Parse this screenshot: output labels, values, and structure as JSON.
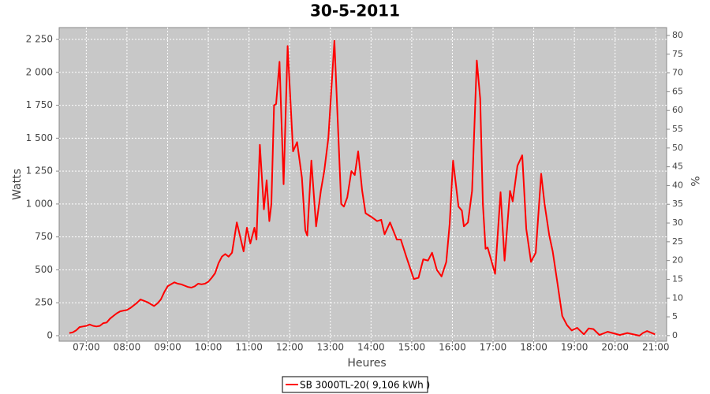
{
  "chart_data": {
    "type": "line",
    "title": "30-5-2011",
    "x_label": "Heures",
    "y_label": "Watts",
    "y2_label": "%",
    "x": [
      "06:35",
      "06:40",
      "06:45",
      "06:50",
      "06:55",
      "07:00",
      "07:05",
      "07:10",
      "07:15",
      "07:20",
      "07:25",
      "07:30",
      "07:35",
      "07:40",
      "07:45",
      "07:50",
      "07:55",
      "08:00",
      "08:05",
      "08:10",
      "08:15",
      "08:20",
      "08:25",
      "08:30",
      "08:35",
      "08:40",
      "08:45",
      "08:50",
      "08:55",
      "09:00",
      "09:05",
      "09:10",
      "09:15",
      "09:20",
      "09:25",
      "09:30",
      "09:35",
      "09:40",
      "09:45",
      "09:50",
      "09:55",
      "10:00",
      "10:05",
      "10:10",
      "10:15",
      "10:20",
      "10:25",
      "10:30",
      "10:35",
      "10:42",
      "10:52",
      "10:57",
      "11:02",
      "11:08",
      "11:11",
      "11:16",
      "11:22",
      "11:26",
      "11:30",
      "11:33",
      "11:37",
      "11:40",
      "11:45",
      "11:51",
      "11:57",
      "12:05",
      "12:11",
      "12:18",
      "12:23",
      "12:26",
      "12:32",
      "12:39",
      "12:46",
      "12:51",
      "12:57",
      "13:06",
      "13:16",
      "13:20",
      "13:25",
      "13:31",
      "13:36",
      "13:41",
      "13:47",
      "13:52",
      "14:01",
      "14:09",
      "14:15",
      "14:20",
      "14:28",
      "14:38",
      "14:44",
      "14:52",
      "15:03",
      "15:10",
      "15:17",
      "15:24",
      "15:30",
      "15:37",
      "15:44",
      "15:51",
      "15:56",
      "16:01",
      "16:09",
      "16:14",
      "16:17",
      "16:23",
      "16:29",
      "16:36",
      "16:41",
      "16:45",
      "16:49",
      "16:52",
      "16:58",
      "17:03",
      "17:11",
      "17:17",
      "17:25",
      "17:29",
      "17:36",
      "17:43",
      "17:49",
      "17:56",
      "18:03",
      "18:11",
      "18:16",
      "18:23",
      "18:28",
      "18:35",
      "18:42",
      "18:49",
      "18:56",
      "19:04",
      "19:14",
      "19:21",
      "19:28",
      "19:37",
      "19:49",
      "20:07",
      "20:18",
      "20:36",
      "20:41",
      "20:47",
      "20:59"
    ],
    "series": [
      {
        "name": "SB 3000TL-20( 9,106 kWh )",
        "color": "#ff0000",
        "values": [
          20,
          25,
          40,
          65,
          70,
          75,
          85,
          75,
          70,
          75,
          95,
          100,
          130,
          150,
          170,
          185,
          190,
          195,
          210,
          230,
          250,
          275,
          265,
          255,
          240,
          225,
          245,
          275,
          330,
          375,
          390,
          405,
          395,
          390,
          380,
          370,
          365,
          375,
          395,
          390,
          395,
          410,
          440,
          475,
          550,
          600,
          620,
          600,
          630,
          860,
          640,
          820,
          700,
          820,
          730,
          1450,
          960,
          1180,
          870,
          1000,
          1750,
          1760,
          2080,
          1150,
          2200,
          1400,
          1470,
          1200,
          800,
          760,
          1330,
          830,
          1100,
          1250,
          1500,
          2240,
          1000,
          980,
          1050,
          1250,
          1220,
          1400,
          1100,
          930,
          900,
          870,
          880,
          770,
          860,
          730,
          730,
          600,
          430,
          440,
          580,
          570,
          630,
          500,
          450,
          560,
          850,
          1330,
          980,
          950,
          830,
          860,
          1100,
          2090,
          1800,
          1000,
          660,
          670,
          560,
          470,
          1090,
          570,
          1100,
          1020,
          1290,
          1370,
          810,
          560,
          630,
          1230,
          1000,
          760,
          640,
          400,
          150,
          80,
          40,
          60,
          10,
          55,
          50,
          5,
          30,
          5,
          20,
          0,
          20,
          35,
          10
        ]
      }
    ],
    "xlim": [
      "06:20",
      "21:16"
    ],
    "xticks": [
      "07:00",
      "08:00",
      "09:00",
      "10:00",
      "11:00",
      "12:00",
      "13:00",
      "14:00",
      "15:00",
      "16:00",
      "17:00",
      "18:00",
      "19:00",
      "20:00",
      "21:00"
    ],
    "ylim": [
      -42,
      2340
    ],
    "yticks": [
      0,
      250,
      500,
      750,
      {
        "value": 1000,
        "label": "1 000"
      },
      {
        "value": 1250,
        "label": "1 250"
      },
      {
        "value": 1500,
        "label": "1 500"
      },
      {
        "value": 1750,
        "label": "1 750"
      },
      {
        "value": 2000,
        "label": "2 000"
      },
      {
        "value": 2250,
        "label": "2 250"
      }
    ],
    "y2lim": [
      -1.5,
      82.1
    ],
    "y2ticks": [
      0,
      5,
      10,
      15,
      20,
      25,
      30,
      35,
      40,
      45,
      50,
      55,
      60,
      65,
      70,
      75,
      80
    ],
    "grid": true,
    "legend": "bottom"
  }
}
